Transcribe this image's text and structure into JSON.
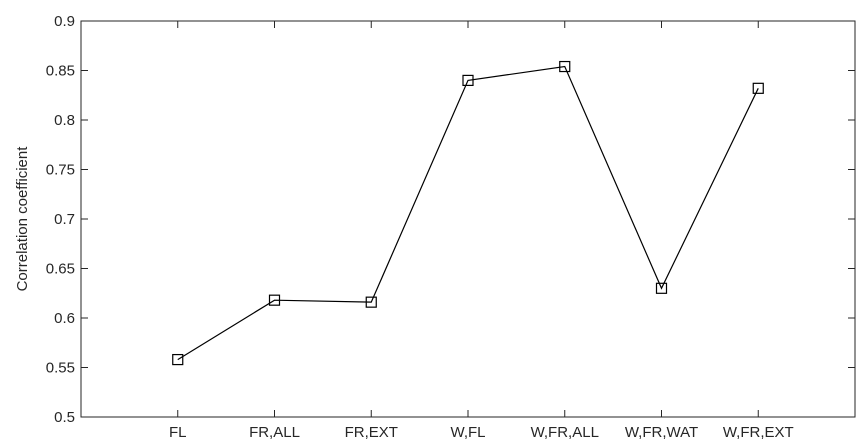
{
  "chart_data": {
    "type": "line",
    "categories": [
      "FL",
      "FR,ALL",
      "FR,EXT",
      "W,FL",
      "W,FR,ALL",
      "W,FR,WAT",
      "W,FR,EXT"
    ],
    "series": [
      {
        "values": [
          0.558,
          0.618,
          0.616,
          0.84,
          0.854,
          0.63,
          0.832
        ],
        "color": "#000000",
        "marker": "square"
      }
    ],
    "title": "",
    "xlabel": "",
    "ylabel": "Correlation coefficient",
    "ylim": [
      0.5,
      0.9
    ],
    "yticks": [
      "0.5",
      "0.55",
      "0.6",
      "0.65",
      "0.7",
      "0.75",
      "0.8",
      "0.85",
      "0.9"
    ],
    "grid": false,
    "box": true
  }
}
